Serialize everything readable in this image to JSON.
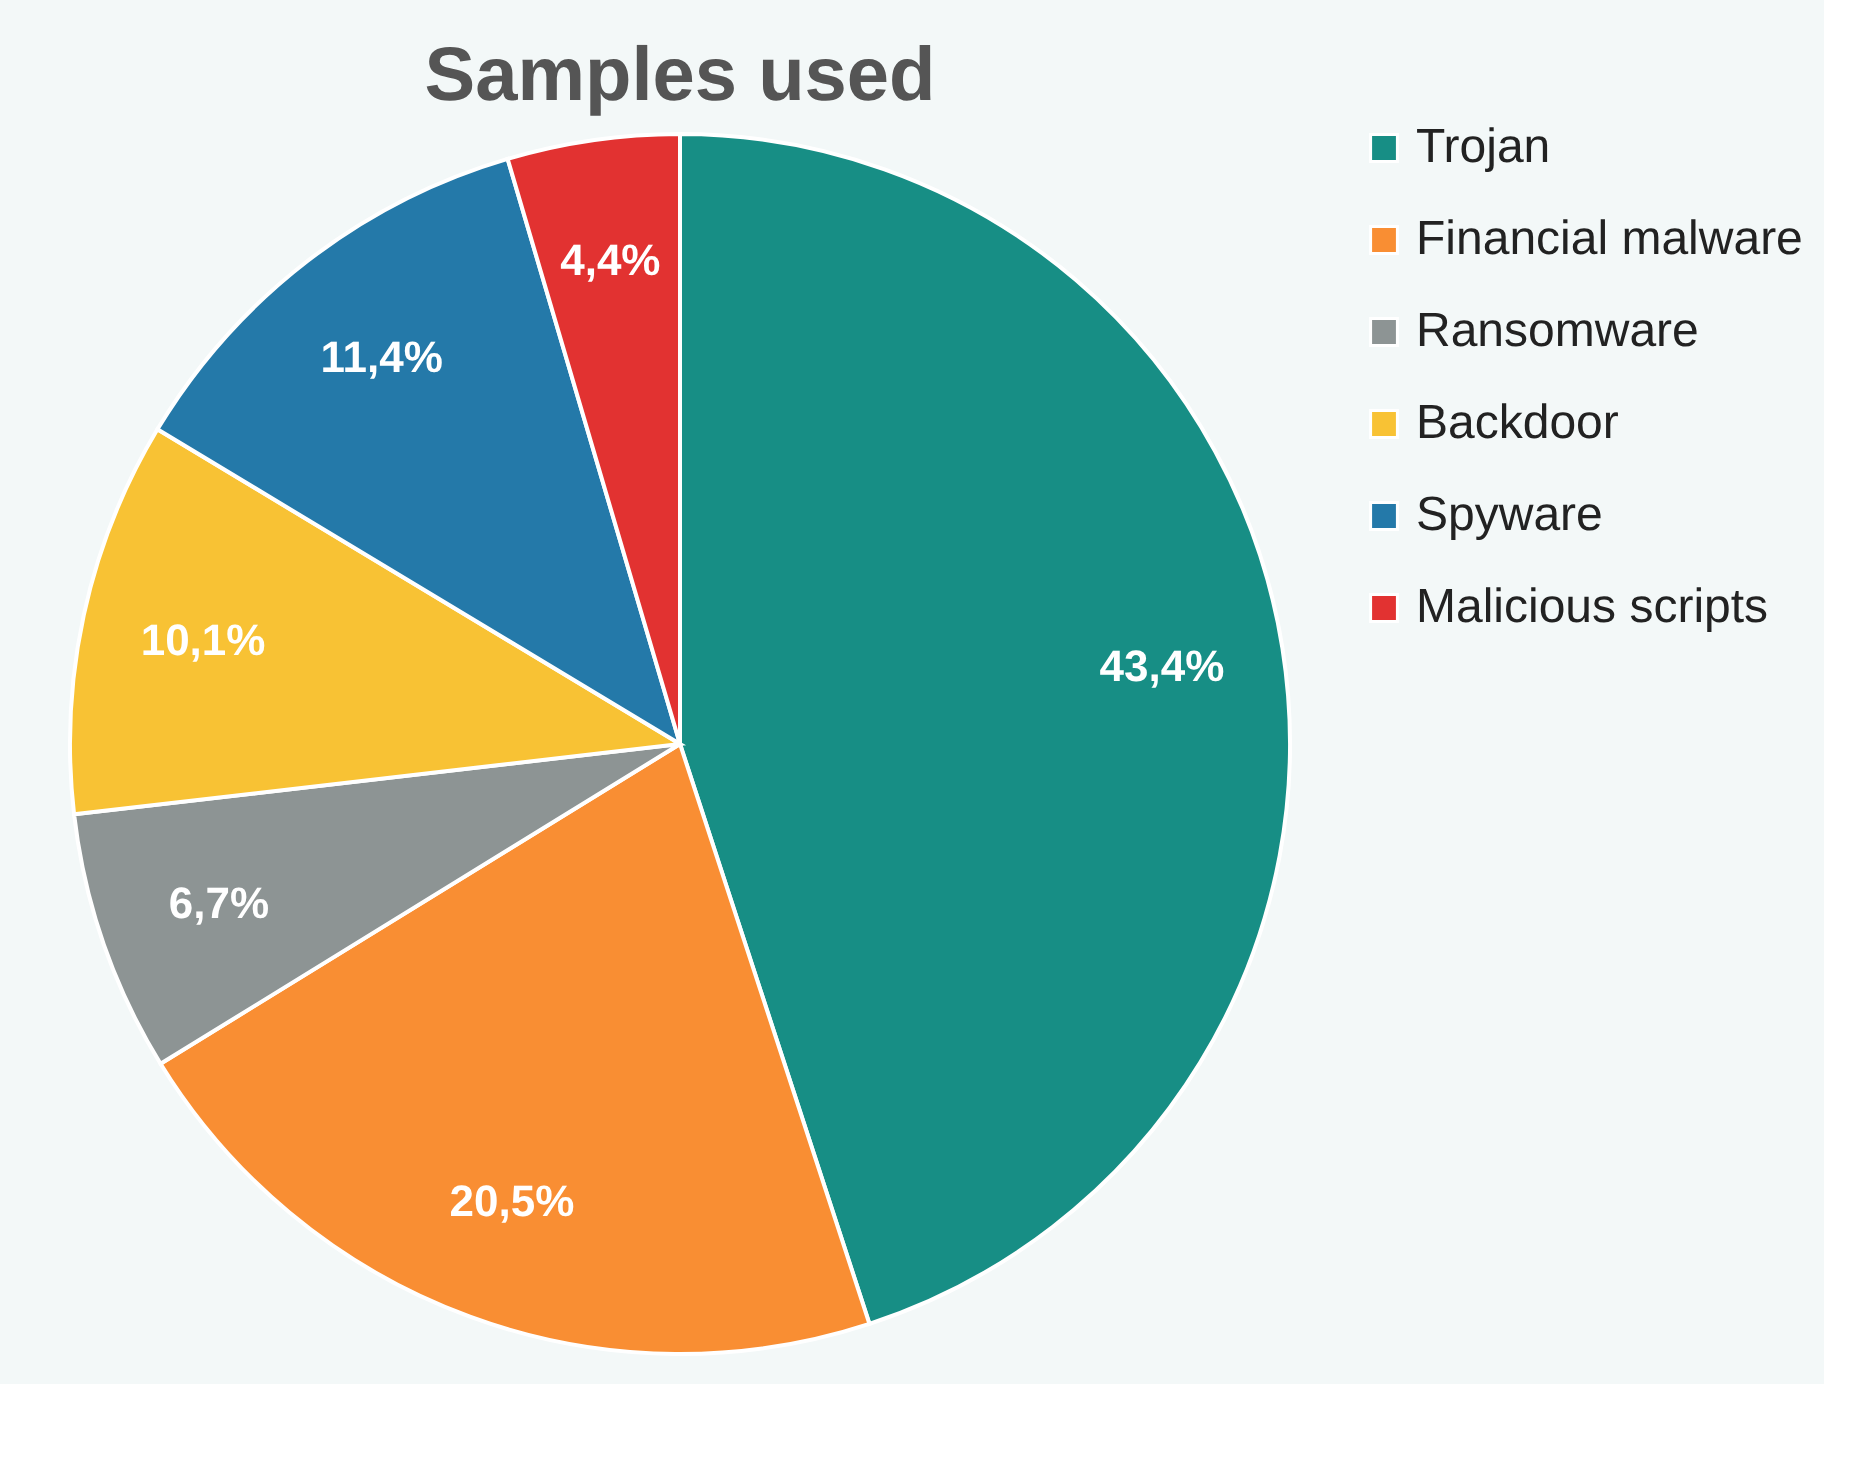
{
  "chart_data": {
    "type": "pie",
    "title": "Samples used",
    "categories": [
      "Trojan",
      "Financial malware",
      "Ransomware",
      "Backdoor",
      "Spyware",
      "Malicious scripts"
    ],
    "values": [
      43.4,
      20.5,
      6.7,
      10.1,
      11.4,
      4.4
    ],
    "value_labels": [
      "43,4%",
      "20,5%",
      "6,7%",
      "10,1%",
      "11,4%",
      "4,4%"
    ],
    "colors": [
      "#178e85",
      "#f98e33",
      "#8d9494",
      "#f8c234",
      "#2479a9",
      "#e23231"
    ],
    "legend": "right"
  }
}
